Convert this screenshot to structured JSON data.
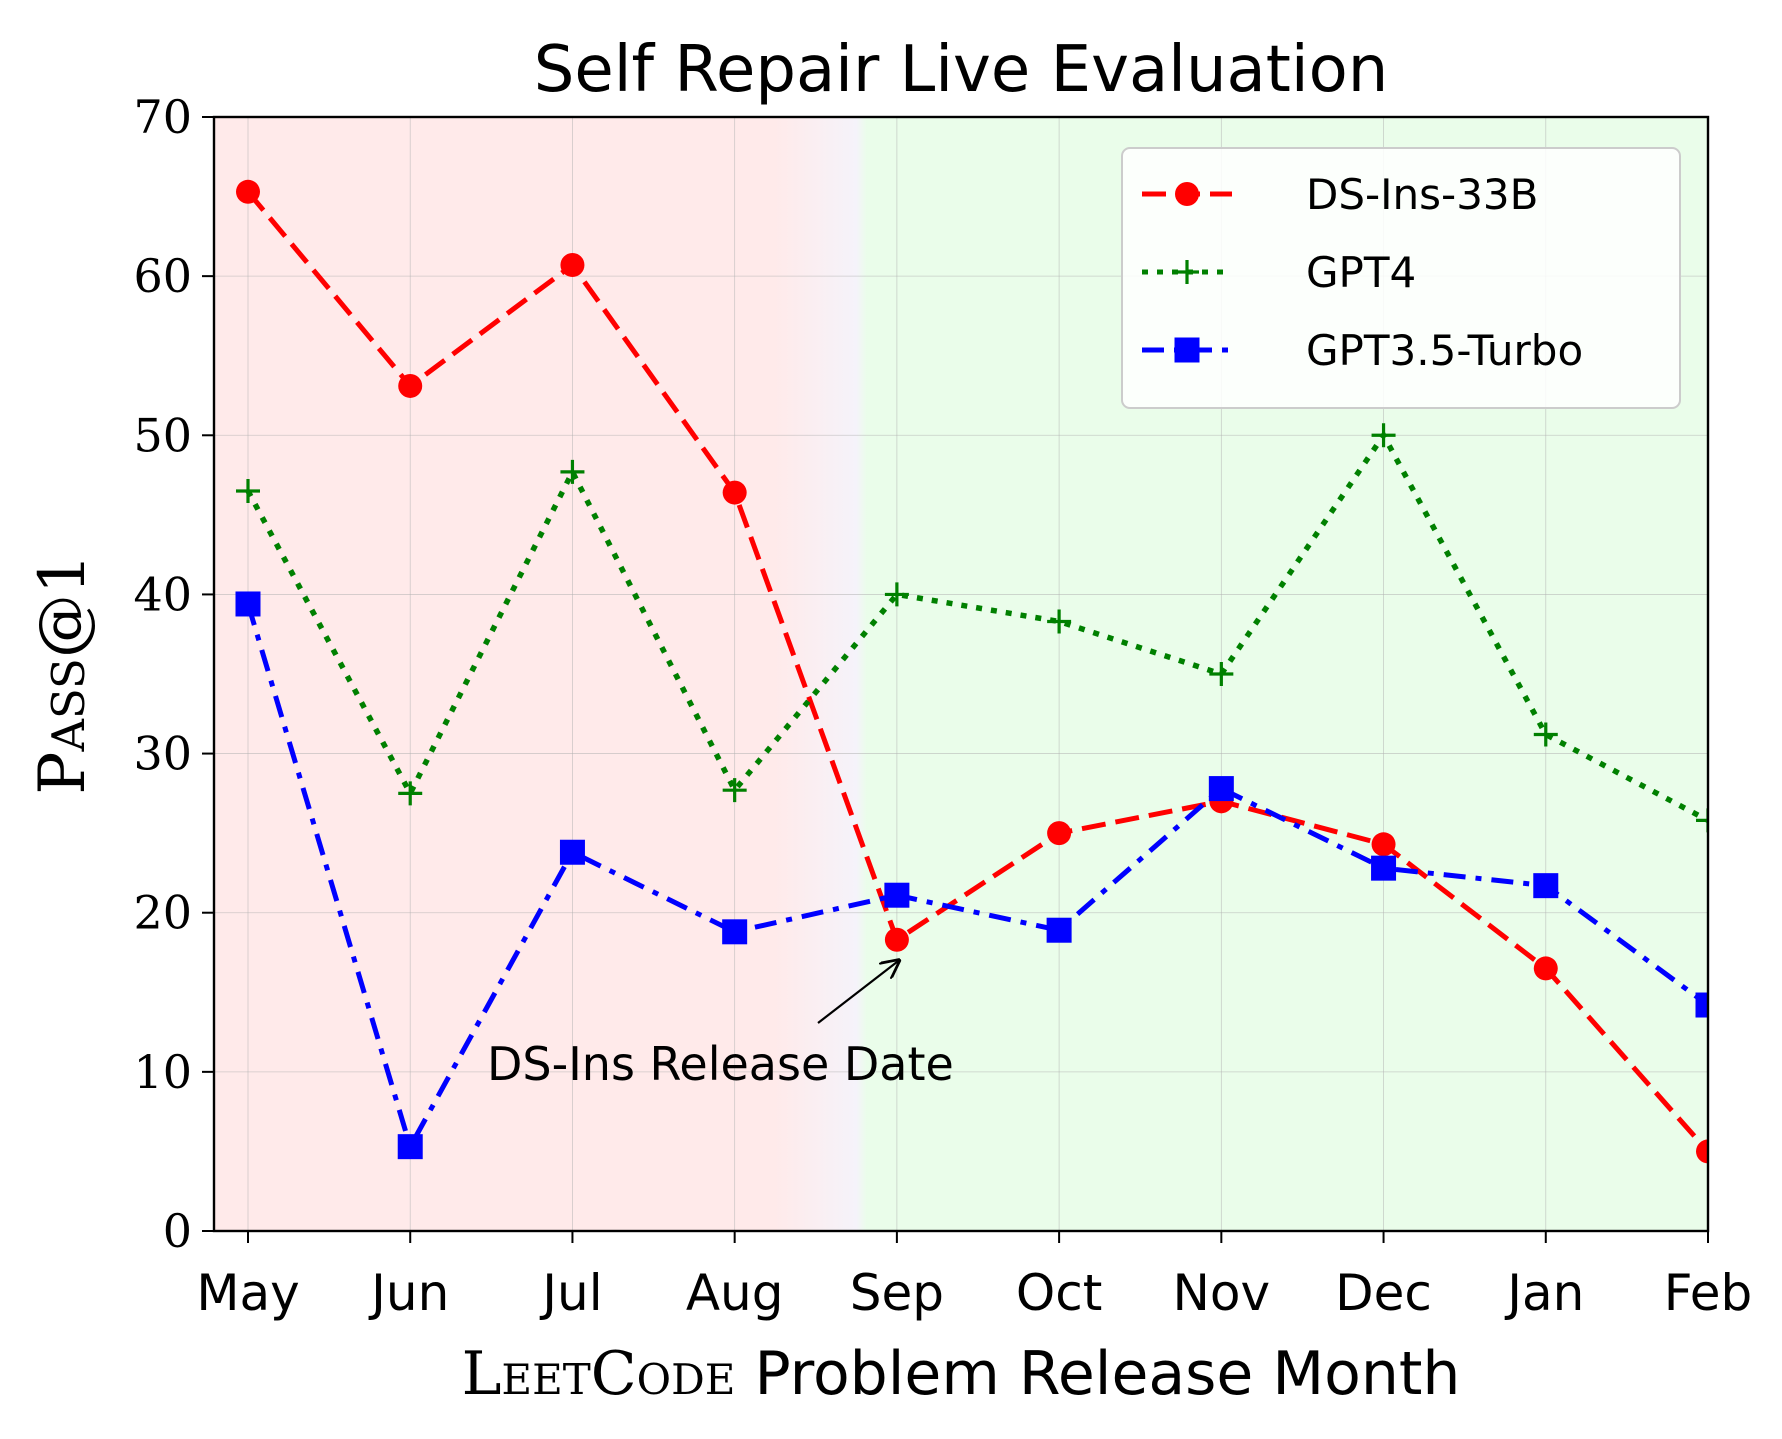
{
  "chart_data": {
    "type": "line",
    "title": "Self Repair Live Evaluation",
    "xlabel": "LeetCode Problem Release Month",
    "xlabel_parts": {
      "smallcaps": "LeetCode",
      "rest": " Problem Release Month"
    },
    "ylabel": "Pass@1",
    "ylabel_parts": {
      "first": "P",
      "smallcaps": "ass",
      "rest": "@1"
    },
    "categories": [
      "May",
      "Jun",
      "Jul",
      "Aug",
      "Sep",
      "Oct",
      "Nov",
      "Dec",
      "Jan",
      "Feb"
    ],
    "ylim": [
      0,
      70
    ],
    "yticks": [
      "0",
      "10",
      "20",
      "30",
      "40",
      "50",
      "60",
      "70"
    ],
    "grid": true,
    "legend_position": "top-right",
    "series": [
      {
        "name": "DS-Ins-33B",
        "color": "#ff0000",
        "linestyle": "dashed",
        "marker": "circle",
        "values": [
          65.3,
          53.1,
          60.7,
          46.4,
          18.3,
          25.0,
          27.0,
          24.3,
          16.5,
          5.0
        ]
      },
      {
        "name": "GPT4",
        "color": "#008000",
        "linestyle": "dotted",
        "marker": "plus",
        "values": [
          46.5,
          27.5,
          47.7,
          27.7,
          40.0,
          38.3,
          35.0,
          50.0,
          31.2,
          25.8
        ]
      },
      {
        "name": "GPT3.5-Turbo",
        "color": "#0000ff",
        "linestyle": "dashdot",
        "marker": "square",
        "values": [
          39.4,
          5.3,
          23.8,
          18.8,
          21.1,
          18.9,
          27.8,
          22.8,
          21.7,
          14.2
        ]
      }
    ],
    "regions": [
      {
        "name": "pre-release",
        "from": "May",
        "to": "Sep",
        "color": "#ffeaea"
      },
      {
        "name": "post-release",
        "from": "Sep",
        "to": "Feb",
        "color": "#eafdea"
      }
    ],
    "annotation": {
      "text": "DS-Ins Release Date",
      "target_category": "Sep",
      "target_value": 17.0
    }
  }
}
